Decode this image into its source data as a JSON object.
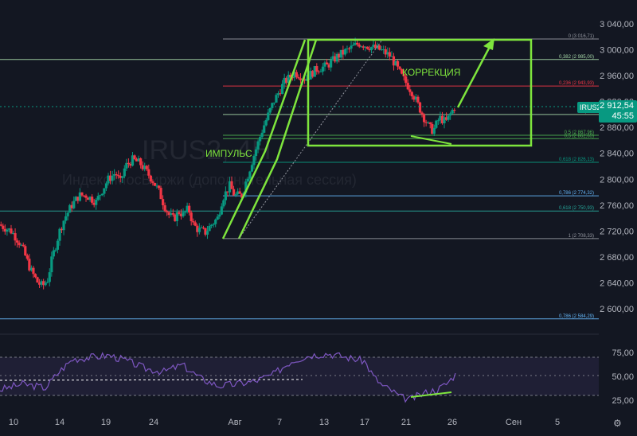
{
  "symbol": "IRUS2",
  "watermark": {
    "ticker": "IRUS2, 4H",
    "subtitle": "Индекс МосБиржи (дополнительная сессия)"
  },
  "last_price": {
    "value": "2 912,54",
    "countdown": "45:55"
  },
  "annotations": {
    "impulse": "ИМПУЛЬС",
    "correction": "КОРРЕКЦИЯ"
  },
  "colors": {
    "background": "#131722",
    "up": "#089981",
    "down": "#f23645",
    "annotation": "#7ee53d",
    "rsi": "#7e57c2"
  },
  "price_axis_labels": [
    "3 040,00",
    "3 000,00",
    "2 960,00",
    "2 920,00",
    "2 880,00",
    "2 840,00",
    "2 800,00",
    "2 760,00",
    "2 720,00",
    "2 680,00",
    "2 640,00",
    "2 600,00"
  ],
  "rsi_axis_labels": [
    "75,00",
    "50,00",
    "25,00"
  ],
  "time_axis_labels": [
    "10",
    "14",
    "19",
    "24",
    "Авг",
    "7",
    "13",
    "17",
    "21",
    "26",
    "Сен",
    "5"
  ],
  "fib_labels": [
    {
      "text": "0 (3 016,71)",
      "price": 3016.71,
      "color": "#9598a1"
    },
    {
      "text": "0,382 (2 985,00)",
      "price": 2985.0,
      "color": "#a5d6a7"
    },
    {
      "text": "0,236 (2 943,93)",
      "price": 2943.93,
      "color": "#f23645"
    },
    {
      "text": "0,382",
      "price": 2900.0,
      "color": "#a5d6a7"
    },
    {
      "text": "0,5 (2 867,96)",
      "price": 2867.96,
      "color": "#4caf50"
    },
    {
      "text": "0,5 (2 862,65)",
      "price": 2862.65,
      "color": "#4caf50"
    },
    {
      "text": "0,618 (2 826,13)",
      "price": 2826.13,
      "color": "#089981"
    },
    {
      "text": "0,786 (2 774,32)",
      "price": 2774.32,
      "color": "#64b5f6"
    },
    {
      "text": "0,618 (2 750,93)",
      "price": 2750.93,
      "color": "#26a69a"
    },
    {
      "text": "1 (2 708,33)",
      "price": 2708.33,
      "color": "#9598a1"
    },
    {
      "text": "0,786 (2 584,29)",
      "price": 2584.29,
      "color": "#64b5f6"
    }
  ],
  "chart_data": {
    "type": "candlestick",
    "interval": "4H",
    "ylim": [
      2570,
      3050
    ],
    "rsi_ylim": [
      15,
      85
    ],
    "rsi_levels": [
      70,
      50,
      30
    ],
    "price_path": [
      [
        0,
        2730
      ],
      [
        0.05,
        2720
      ],
      [
        0.08,
        2705
      ],
      [
        0.1,
        2690
      ],
      [
        0.13,
        2660
      ],
      [
        0.16,
        2640
      ],
      [
        0.18,
        2635
      ],
      [
        0.2,
        2645
      ],
      [
        0.22,
        2680
      ],
      [
        0.25,
        2720
      ],
      [
        0.27,
        2740
      ],
      [
        0.3,
        2760
      ],
      [
        0.33,
        2775
      ],
      [
        0.36,
        2775
      ],
      [
        0.38,
        2770
      ],
      [
        0.4,
        2765
      ],
      [
        0.42,
        2780
      ],
      [
        0.45,
        2800
      ],
      [
        0.48,
        2810
      ],
      [
        0.5,
        2795
      ],
      [
        0.52,
        2820
      ],
      [
        0.55,
        2830
      ],
      [
        0.58,
        2825
      ],
      [
        0.6,
        2815
      ],
      [
        0.63,
        2800
      ],
      [
        0.66,
        2780
      ],
      [
        0.68,
        2760
      ],
      [
        0.7,
        2745
      ],
      [
        0.72,
        2738
      ],
      [
        0.74,
        2750
      ],
      [
        0.76,
        2745
      ],
      [
        0.78,
        2755
      ],
      [
        0.8,
        2730
      ],
      [
        0.82,
        2722
      ],
      [
        0.85,
        2718
      ],
      [
        0.87,
        2728
      ],
      [
        0.9,
        2740
      ],
      [
        0.92,
        2770
      ],
      [
        0.95,
        2790
      ],
      [
        0.97,
        2775
      ]
    ],
    "price_path2": [
      [
        0,
        2775
      ],
      [
        0.05,
        2830
      ],
      [
        0.1,
        2880
      ],
      [
        0.15,
        2920
      ],
      [
        0.2,
        2950
      ],
      [
        0.25,
        2965
      ],
      [
        0.3,
        2955
      ],
      [
        0.35,
        2970
      ],
      [
        0.4,
        2975
      ],
      [
        0.45,
        2990
      ],
      [
        0.5,
        3000
      ],
      [
        0.55,
        3010
      ],
      [
        0.6,
        3005
      ],
      [
        0.65,
        3000
      ],
      [
        0.7,
        2990
      ],
      [
        0.75,
        2960
      ],
      [
        0.8,
        2935
      ],
      [
        0.85,
        2900
      ],
      [
        0.88,
        2880
      ],
      [
        0.9,
        2875
      ],
      [
        0.93,
        2895
      ],
      [
        0.96,
        2888
      ],
      [
        1,
        2912
      ]
    ],
    "rsi_path": [
      [
        0,
        36
      ],
      [
        0.05,
        42
      ],
      [
        0.1,
        38
      ],
      [
        0.13,
        55
      ],
      [
        0.16,
        68
      ],
      [
        0.2,
        70
      ],
      [
        0.24,
        72
      ],
      [
        0.28,
        66
      ],
      [
        0.32,
        58
      ],
      [
        0.36,
        55
      ],
      [
        0.4,
        62
      ],
      [
        0.44,
        48
      ],
      [
        0.48,
        40
      ],
      [
        0.52,
        42
      ],
      [
        0.56,
        45
      ],
      [
        0.6,
        52
      ],
      [
        0.64,
        66
      ],
      [
        0.68,
        72
      ],
      [
        0.72,
        74
      ],
      [
        0.76,
        70
      ],
      [
        0.8,
        66
      ],
      [
        0.82,
        50
      ],
      [
        0.84,
        40
      ],
      [
        0.86,
        35
      ],
      [
        0.88,
        28
      ],
      [
        0.9,
        26
      ],
      [
        0.92,
        30
      ],
      [
        0.94,
        34
      ],
      [
        0.96,
        36
      ],
      [
        0.98,
        42
      ],
      [
        1,
        52
      ]
    ],
    "last": 2912.54
  }
}
